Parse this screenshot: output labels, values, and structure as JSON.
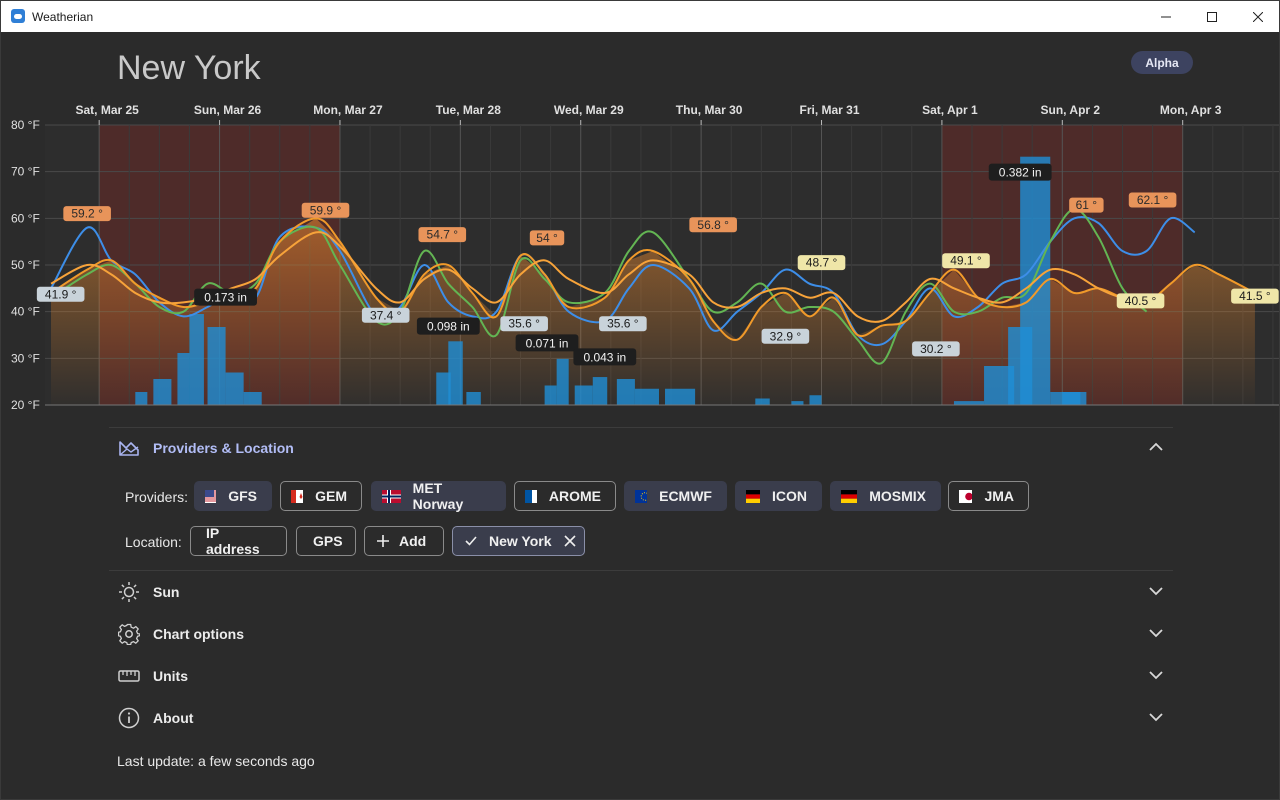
{
  "window": {
    "title": "Weatherian",
    "minimize": "—",
    "maximize": "☐",
    "close": "✕"
  },
  "header": {
    "city": "New York",
    "badge": "Alpha"
  },
  "chart_data": {
    "type": "line",
    "title": "",
    "xlabel": "",
    "ylabel": "",
    "ylim": [
      20,
      80
    ],
    "y_ticks": [
      "80 °F",
      "70 °F",
      "60 °F",
      "50 °F",
      "40 °F",
      "30 °F",
      "20 °F"
    ],
    "x_ticks": [
      "Sat, Mar 25",
      "Sun, Mar 26",
      "Mon, Mar 27",
      "Tue, Mar 28",
      "Wed, Mar 29",
      "Thu, Mar 30",
      "Fri, Mar 31",
      "Sat, Apr 1",
      "Sun, Apr 2",
      "Mon, Apr 3"
    ],
    "x_range_days": [
      24.55,
      34.8
    ],
    "rain_shading": [
      [
        25.0,
        27.0
      ],
      [
        32.0,
        34.0
      ]
    ],
    "series": [
      {
        "color": "#3d8ee8",
        "x": [
          24.6,
          24.9,
          25.1,
          25.3,
          25.5,
          25.7,
          25.9,
          26.1,
          26.3,
          26.5,
          26.8,
          27.0,
          27.3,
          27.5,
          27.7,
          27.9,
          28.1,
          28.3,
          28.5,
          28.7,
          28.9,
          29.2,
          29.4,
          29.6,
          29.9,
          30.1,
          30.3,
          30.5,
          30.7,
          30.9,
          31.1,
          31.3,
          31.5,
          31.7,
          31.9,
          32.1,
          32.3,
          32.5,
          32.7,
          32.9,
          33.1,
          33.3,
          33.5,
          33.7,
          33.9,
          34.1
        ],
        "values": [
          45,
          58,
          51,
          48,
          42,
          39,
          41,
          44,
          43,
          56,
          58,
          53,
          39,
          41,
          50,
          42,
          39,
          40,
          52,
          48,
          40,
          38,
          45,
          50,
          45,
          36,
          40,
          44,
          49,
          46,
          44,
          35,
          33,
          38,
          45,
          39,
          41,
          46,
          48,
          55,
          60,
          59,
          53,
          53,
          60,
          57
        ]
      },
      {
        "color": "#63b553",
        "x": [
          24.6,
          24.9,
          25.1,
          25.3,
          25.5,
          25.7,
          25.9,
          26.1,
          26.3,
          26.5,
          26.8,
          27.0,
          27.3,
          27.5,
          27.7,
          27.9,
          28.1,
          28.3,
          28.5,
          28.7,
          28.9,
          29.2,
          29.4,
          29.6,
          29.9,
          30.1,
          30.3,
          30.5,
          30.7,
          30.9,
          31.1,
          31.3,
          31.5,
          31.7,
          31.9,
          32.1,
          32.3,
          32.5,
          32.7,
          32.9,
          33.1,
          33.3,
          33.5,
          33.7
        ],
        "values": [
          43,
          48,
          50,
          46,
          41,
          40,
          46,
          44,
          46,
          55,
          58,
          50,
          38,
          40,
          53,
          46,
          41,
          35,
          51,
          47,
          42,
          44,
          53,
          57,
          47,
          40,
          42,
          46,
          40,
          41,
          40,
          34,
          29,
          40,
          46,
          40,
          40,
          43,
          44,
          55,
          62,
          56,
          45,
          40
        ]
      },
      {
        "color": "#f19a2a",
        "x": [
          24.6,
          24.9,
          25.1,
          25.3,
          25.5,
          25.7,
          25.9,
          26.1,
          26.3,
          26.5,
          26.8,
          27.0,
          27.3,
          27.5,
          27.7,
          27.9,
          28.1,
          28.3,
          28.5,
          28.7,
          28.9,
          29.2,
          29.4,
          29.6,
          29.9,
          30.1,
          30.3,
          30.5,
          30.7,
          30.9,
          31.1,
          31.3,
          31.5,
          31.7,
          31.9,
          32.1,
          32.3,
          32.5,
          32.7,
          32.9,
          33.1,
          33.3,
          33.5,
          33.7,
          33.9,
          34.1,
          34.3,
          34.6
        ],
        "values": [
          44,
          49,
          51,
          46,
          43,
          41,
          42,
          43,
          45,
          55,
          60,
          55,
          43,
          40,
          48,
          50,
          44,
          39,
          52,
          48,
          41,
          43,
          51,
          53,
          47,
          38,
          34,
          41,
          44,
          39,
          43,
          35,
          37,
          38,
          44,
          49,
          43,
          41,
          42,
          47,
          44,
          45,
          43,
          42,
          46,
          50,
          48,
          44
        ]
      },
      {
        "color": "#f7a33a",
        "x": [
          24.6,
          24.9,
          25.1,
          25.3,
          25.5,
          25.7,
          25.9,
          26.1,
          26.3,
          26.5,
          26.8,
          27.0,
          27.3,
          27.5,
          27.7,
          27.9,
          28.1,
          28.3,
          28.5,
          28.7,
          28.9,
          29.2,
          29.4,
          29.6,
          29.9,
          30.1,
          30.3,
          30.5,
          30.7,
          30.9,
          31.1,
          31.3,
          31.5,
          31.7,
          31.9,
          32.1,
          32.3,
          32.5,
          32.7,
          32.9,
          33.1,
          33.3,
          33.5,
          33.7
        ],
        "values": [
          46,
          50,
          48,
          44,
          42,
          42,
          43,
          45,
          47,
          52,
          57,
          54,
          45,
          42,
          47,
          49,
          45,
          42,
          48,
          51,
          47,
          44,
          48,
          51,
          48,
          42,
          41,
          44,
          45,
          43,
          44,
          39,
          38,
          42,
          47,
          45,
          43,
          42,
          45,
          49,
          48,
          45,
          43,
          43
        ]
      }
    ],
    "bars": [
      {
        "x": 25.3,
        "w": 0.1,
        "v": 0.02
      },
      {
        "x": 25.45,
        "w": 0.15,
        "v": 0.04
      },
      {
        "x": 25.65,
        "w": 0.1,
        "v": 0.08
      },
      {
        "x": 25.75,
        "w": 0.12,
        "v": 0.14
      },
      {
        "x": 25.9,
        "w": 0.15,
        "v": 0.12
      },
      {
        "x": 26.05,
        "w": 0.15,
        "v": 0.05
      },
      {
        "x": 26.2,
        "w": 0.15,
        "v": 0.02
      },
      {
        "x": 27.8,
        "w": 0.12,
        "v": 0.05
      },
      {
        "x": 27.9,
        "w": 0.12,
        "v": 0.098
      },
      {
        "x": 28.05,
        "w": 0.12,
        "v": 0.02
      },
      {
        "x": 28.7,
        "w": 0.1,
        "v": 0.03
      },
      {
        "x": 28.8,
        "w": 0.1,
        "v": 0.071
      },
      {
        "x": 28.95,
        "w": 0.15,
        "v": 0.03
      },
      {
        "x": 29.1,
        "w": 0.12,
        "v": 0.043
      },
      {
        "x": 29.3,
        "w": 0.15,
        "v": 0.04
      },
      {
        "x": 29.45,
        "w": 0.2,
        "v": 0.025
      },
      {
        "x": 29.7,
        "w": 0.25,
        "v": 0.025
      },
      {
        "x": 30.45,
        "w": 0.12,
        "v": 0.01
      },
      {
        "x": 30.75,
        "w": 0.1,
        "v": 0.006
      },
      {
        "x": 30.9,
        "w": 0.1,
        "v": 0.015
      },
      {
        "x": 32.1,
        "w": 0.25,
        "v": 0.006
      },
      {
        "x": 32.35,
        "w": 0.25,
        "v": 0.06
      },
      {
        "x": 32.55,
        "w": 0.2,
        "v": 0.12
      },
      {
        "x": 32.65,
        "w": 0.25,
        "v": 0.382
      },
      {
        "x": 32.9,
        "w": 0.25,
        "v": 0.02
      },
      {
        "x": 33.0,
        "w": 0.2,
        "v": 0.02
      }
    ],
    "precip_max_in": 0.4,
    "temp_labels": [
      {
        "text": "59.2 °",
        "x": 24.9,
        "y": 59.2,
        "kind": "max"
      },
      {
        "text": "41.9 °",
        "x": 24.68,
        "y": 41.9,
        "kind": "min"
      },
      {
        "text": "59.9 °",
        "x": 26.88,
        "y": 59.9,
        "kind": "max"
      },
      {
        "text": "37.4 °",
        "x": 27.38,
        "y": 37.4,
        "kind": "min"
      },
      {
        "text": "54.7 °",
        "x": 27.85,
        "y": 54.7,
        "kind": "max"
      },
      {
        "text": "35.6 °",
        "x": 28.53,
        "y": 35.6,
        "kind": "min"
      },
      {
        "text": "54 °",
        "x": 28.72,
        "y": 54,
        "kind": "max"
      },
      {
        "text": "35.6 °",
        "x": 29.35,
        "y": 35.6,
        "kind": "min"
      },
      {
        "text": "56.8 °",
        "x": 30.1,
        "y": 56.8,
        "kind": "max"
      },
      {
        "text": "32.9 °",
        "x": 30.7,
        "y": 32.9,
        "kind": "min"
      },
      {
        "text": "48.7 °",
        "x": 31.0,
        "y": 48.7,
        "kind": "mid"
      },
      {
        "text": "30.2 °",
        "x": 31.95,
        "y": 30.2,
        "kind": "min"
      },
      {
        "text": "49.1 °",
        "x": 32.2,
        "y": 49.1,
        "kind": "mid"
      },
      {
        "text": "61 °",
        "x": 33.2,
        "y": 61,
        "kind": "max"
      },
      {
        "text": "62.1 °",
        "x": 33.75,
        "y": 62.1,
        "kind": "max"
      },
      {
        "text": "40.5 °",
        "x": 33.65,
        "y": 40.5,
        "kind": "mid"
      },
      {
        "text": "41.5 °",
        "x": 34.6,
        "y": 41.5,
        "kind": "mid"
      }
    ],
    "precip_labels": [
      {
        "text": "0.173 in",
        "x": 26.05,
        "y": 43
      },
      {
        "text": "0.098 in",
        "x": 27.9,
        "y": 36.8
      },
      {
        "text": "0.071 in",
        "x": 28.72,
        "y": 33.2
      },
      {
        "text": "0.043 in",
        "x": 29.2,
        "y": 30.2
      },
      {
        "text": "0.382 in",
        "x": 32.65,
        "y": 69.8
      }
    ]
  },
  "sections": {
    "providers_location": {
      "label": "Providers & Location"
    },
    "sun": {
      "label": "Sun"
    },
    "chart_options": {
      "label": "Chart options"
    },
    "units": {
      "label": "Units"
    },
    "about": {
      "label": "About"
    }
  },
  "providers": {
    "label": "Providers:",
    "items": [
      {
        "name": "GFS",
        "selected": true
      },
      {
        "name": "GEM",
        "selected": false
      },
      {
        "name": "MET Norway",
        "selected": true
      },
      {
        "name": "AROME",
        "selected": false
      },
      {
        "name": "ECMWF",
        "selected": true
      },
      {
        "name": "ICON",
        "selected": true
      },
      {
        "name": "MOSMIX",
        "selected": true
      },
      {
        "name": "JMA",
        "selected": false
      }
    ]
  },
  "location": {
    "label": "Location:",
    "ip": "IP address",
    "gps": "GPS",
    "add": "Add",
    "current": "New York"
  },
  "footer": {
    "last_update": "Last update: a few seconds ago"
  }
}
